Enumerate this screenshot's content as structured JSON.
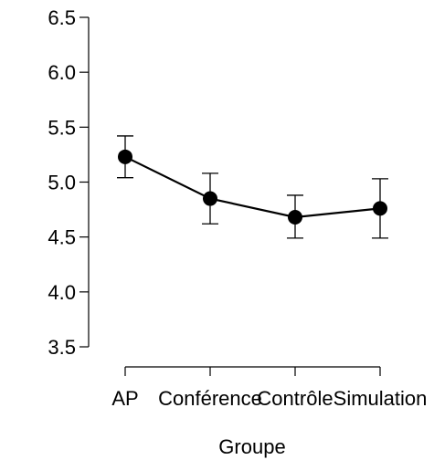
{
  "chart_data": {
    "type": "line",
    "title": "",
    "xlabel": "Groupe",
    "ylabel": "",
    "categories": [
      "AP",
      "Conférence",
      "Contrôle",
      "Simulation"
    ],
    "series": [
      {
        "values": [
          5.23,
          4.85,
          4.68,
          4.76
        ],
        "error_low": [
          5.04,
          4.62,
          4.49,
          4.49
        ],
        "error_high": [
          5.42,
          5.08,
          4.88,
          5.03
        ]
      }
    ],
    "ylim": [
      3.5,
      6.5
    ],
    "yticks": [
      "3.5",
      "4.0",
      "4.5",
      "5.0",
      "5.5",
      "6.0",
      "6.5"
    ],
    "grid": false,
    "legend": "none",
    "colors": {
      "line": "#000000",
      "marker": "#000000",
      "axis": "#000000"
    }
  }
}
